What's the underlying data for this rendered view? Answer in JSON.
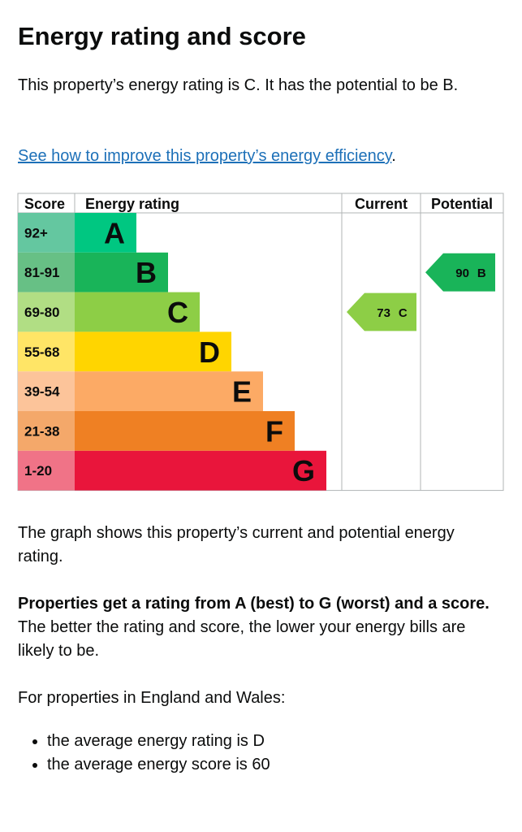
{
  "heading": "Energy rating and score",
  "intro": "This property’s energy rating is C. It has the potential to be B.",
  "link": {
    "text": "See how to improve this property’s energy efficiency",
    "suffix": "."
  },
  "rating_chart": {
    "headers": [
      "Score",
      "Energy rating",
      "Current",
      "Potential"
    ],
    "bands": [
      {
        "score": "92+",
        "rating": "A",
        "color": "#00c781",
        "score_color": "#64c7a0"
      },
      {
        "score": "81-91",
        "rating": "B",
        "color": "#19b459",
        "score_color": "#67c085"
      },
      {
        "score": "69-80",
        "rating": "C",
        "color": "#8dce46",
        "score_color": "#b1de84"
      },
      {
        "score": "55-68",
        "rating": "D",
        "color": "#ffd500",
        "score_color": "#ffe566"
      },
      {
        "score": "39-54",
        "rating": "E",
        "color": "#fcaa65",
        "score_color": "#fcc49a"
      },
      {
        "score": "21-38",
        "rating": "F",
        "color": "#ef8023",
        "score_color": "#f4a86a"
      },
      {
        "score": "1-20",
        "rating": "G",
        "color": "#e9153b",
        "score_color": "#f07387"
      }
    ],
    "current": {
      "score": 73,
      "rating": "C"
    },
    "potential": {
      "score": 90,
      "rating": "B"
    }
  },
  "graph_note": "The graph shows this property’s current and potential energy rating.",
  "rating_info": {
    "bold": "Properties get a rating from A (best) to G (worst) and a score.",
    "text": " The better the rating and score, the lower your energy bills are likely to be."
  },
  "averages_intro": "For properties in England and Wales:",
  "averages": [
    "the average energy rating is D",
    "the average energy score is 60"
  ]
}
